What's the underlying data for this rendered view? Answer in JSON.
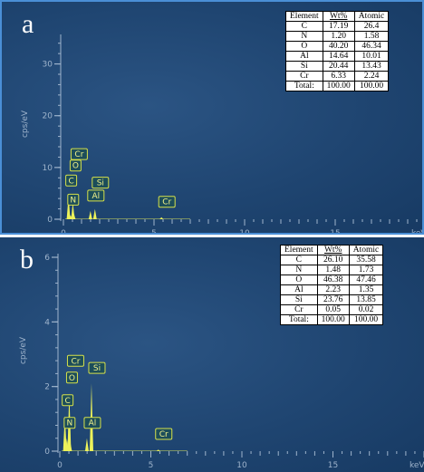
{
  "panels": [
    {
      "letter": "a",
      "ylabel": "cps/eV",
      "xlabel": "keV",
      "table": {
        "headers": [
          "Element",
          "Wt%",
          "Atomic"
        ],
        "rows": [
          [
            "C",
            "17.19",
            "26.4"
          ],
          [
            "N",
            "1.20",
            "1.58"
          ],
          [
            "O",
            "40.20",
            "46.34"
          ],
          [
            "Al",
            "14.64",
            "10.01"
          ],
          [
            "Si",
            "20.44",
            "13.43"
          ],
          [
            "Cr",
            "6.33",
            "2.24"
          ],
          [
            "Total:",
            "100.00",
            "100.00"
          ]
        ]
      }
    },
    {
      "letter": "b",
      "ylabel": "cps/eV",
      "xlabel": "keV",
      "table": {
        "headers": [
          "Element",
          "Wt%",
          "Atomic"
        ],
        "rows": [
          [
            "C",
            "26.10",
            "35.58"
          ],
          [
            "N",
            "1.48",
            "1.73"
          ],
          [
            "O",
            "46.38",
            "47.46"
          ],
          [
            "Al",
            "2.23",
            "1.35"
          ],
          [
            "Si",
            "23.76",
            "13.85"
          ],
          [
            "Cr",
            "0.05",
            "0.02"
          ],
          [
            "Total:",
            "100.00",
            "100.00"
          ]
        ]
      }
    }
  ],
  "chart_data": [
    {
      "type": "line",
      "title": "",
      "xlabel": "keV",
      "ylabel": "cps/eV",
      "xlim": [
        0,
        20
      ],
      "ylim": [
        0,
        35
      ],
      "x_ticks": [
        0,
        5,
        10,
        15
      ],
      "y_ticks": [
        0,
        10,
        20,
        30
      ],
      "grid": false,
      "series": [
        {
          "x": [
            0.28,
            0.39,
            0.52,
            0.57,
            1.49,
            1.74,
            5.41
          ],
          "y": [
            4.5,
            0.8,
            3.2,
            1.2,
            1.6,
            2.0,
            0.4
          ],
          "labels": [
            "C",
            "N",
            "O",
            "Cr",
            "Al",
            "Si",
            "Cr"
          ]
        }
      ],
      "peak_labels": [
        "C",
        "N",
        "O",
        "Cr",
        "Al",
        "Si",
        "Cr"
      ],
      "colors": {
        "background": "#1f4571",
        "spectrum": "#ecf25a",
        "axis": "#9fb4cc"
      }
    },
    {
      "type": "line",
      "title": "",
      "xlabel": "keV",
      "ylabel": "cps/eV",
      "xlim": [
        0,
        20
      ],
      "ylim": [
        0,
        6
      ],
      "x_ticks": [
        0,
        5,
        10,
        15
      ],
      "y_ticks": [
        0,
        2,
        4,
        6
      ],
      "grid": false,
      "series": [
        {
          "x": [
            0.28,
            0.39,
            0.52,
            0.57,
            1.49,
            1.74,
            5.41
          ],
          "y": [
            1.1,
            0.4,
            1.8,
            0.3,
            0.4,
            2.1,
            0.05
          ],
          "labels": [
            "C",
            "N",
            "O",
            "Cr",
            "Al",
            "Si",
            "Cr"
          ]
        }
      ],
      "peak_labels": [
        "C",
        "N",
        "O",
        "Cr",
        "Al",
        "Si",
        "Cr"
      ],
      "colors": {
        "background": "#1f4571",
        "spectrum": "#ecf25a",
        "axis": "#9fb4cc"
      }
    }
  ]
}
